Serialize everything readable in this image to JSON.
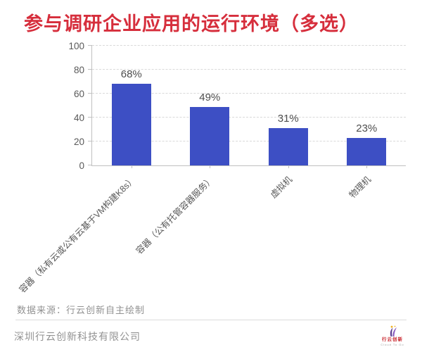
{
  "title": {
    "text": "参与调研企业应用的运行环境（多选）"
  },
  "chart_data": {
    "type": "bar",
    "title": "参与调研企业应用的运行环境（多选）",
    "categories": [
      "容器（私有云或公有云基于VM构建K8s）",
      "容器（公有托管容器服务）",
      "虚拟机",
      "物理机"
    ],
    "values": [
      68,
      49,
      31,
      23
    ],
    "data_labels": [
      "68%",
      "49%",
      "31%",
      "23%"
    ],
    "xlabel": "",
    "ylabel": "",
    "ylim": [
      0,
      100
    ],
    "yticks": [
      0,
      20,
      40,
      60,
      80,
      100
    ],
    "grid": "horizontal-dashed",
    "legend": "none",
    "bar_color": "#3d4fc4",
    "category_label_rotation_deg": 45
  },
  "footer": {
    "source_text": "数据来源：行云创新自主绘制",
    "company_text": "深圳行云创新科技有限公司"
  },
  "logo": {
    "name": "行云创新",
    "subtext": "Cloud To Go"
  },
  "theme": {
    "title_red": "#d62e3c",
    "bar_blue": "#3d4fc4",
    "grid_line": "#d9d9d9",
    "axis_line": "#c0c0c0",
    "tick_text": "#595959",
    "value_text": "#4d4d4d",
    "muted_text": "#929292",
    "divider_line": "#dcdcdc",
    "logo_red": "#c8252c",
    "logo_purple": "#5c3d91",
    "logo_violet": "#8a5bbf",
    "logo_yellow": "#f0b428"
  }
}
